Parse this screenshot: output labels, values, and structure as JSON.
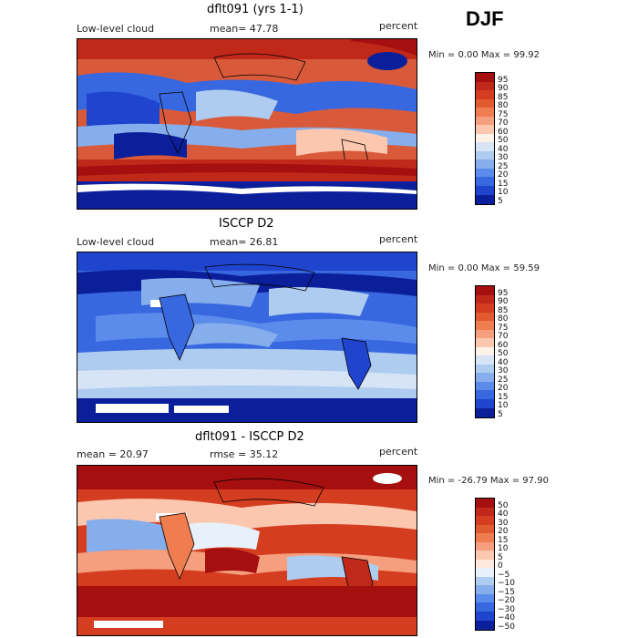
{
  "season": "DJF",
  "panels": [
    {
      "title": "dflt091 (yrs 1-1)",
      "left_label": "Low-level cloud",
      "center_label": "mean=  47.78",
      "right_label": "percent",
      "min_max": "Min =    0.00 Max =   99.92",
      "colorbar_labels": [
        "95",
        "90",
        "85",
        "80",
        "75",
        "70",
        "60",
        "50",
        "40",
        "30",
        "25",
        "20",
        "15",
        "10",
        "5"
      ],
      "colorbar_colors": [
        "#a50f0f",
        "#c0281a",
        "#d43d20",
        "#e25a30",
        "#ef7d50",
        "#f59f7e",
        "#fbc7ae",
        "#fdf2e8",
        "#d6e4f5",
        "#aecbf0",
        "#86aeec",
        "#5b8cec",
        "#3868e0",
        "#1f45cf",
        "#0b1f9a"
      ]
    },
    {
      "title": "ISCCP D2",
      "left_label": "Low-level cloud",
      "center_label": "mean=  26.81",
      "right_label": "percent",
      "min_max": "Min =    0.00 Max =   59.59",
      "colorbar_labels": [
        "95",
        "90",
        "85",
        "80",
        "75",
        "70",
        "60",
        "50",
        "40",
        "30",
        "25",
        "20",
        "15",
        "10",
        "5"
      ],
      "colorbar_colors": [
        "#a50f0f",
        "#c0281a",
        "#d43d20",
        "#e25a30",
        "#ef7d50",
        "#f59f7e",
        "#fbc7ae",
        "#fdf2e8",
        "#d6e4f5",
        "#aecbf0",
        "#86aeec",
        "#5b8cec",
        "#3868e0",
        "#1f45cf",
        "#0b1f9a"
      ]
    },
    {
      "title": "dflt091 - ISCCP D2",
      "left_label": "mean =   20.97",
      "center_label": "rmse =   35.12",
      "right_label": "percent",
      "min_max": "Min = -26.79 Max =   97.90",
      "colorbar_labels": [
        "50",
        "40",
        "30",
        "20",
        "15",
        "10",
        "5",
        "0",
        "−5",
        "−10",
        "−15",
        "−20",
        "−30",
        "−40",
        "−50"
      ],
      "colorbar_colors": [
        "#a50f0f",
        "#c0281a",
        "#d43d20",
        "#e25a30",
        "#ef7d50",
        "#f59f7e",
        "#fbc7ae",
        "#fde8dc",
        "#e8f0fa",
        "#aecbf0",
        "#86aeec",
        "#5b8cec",
        "#3868e0",
        "#1f45cf",
        "#0b1f9a"
      ]
    }
  ]
}
